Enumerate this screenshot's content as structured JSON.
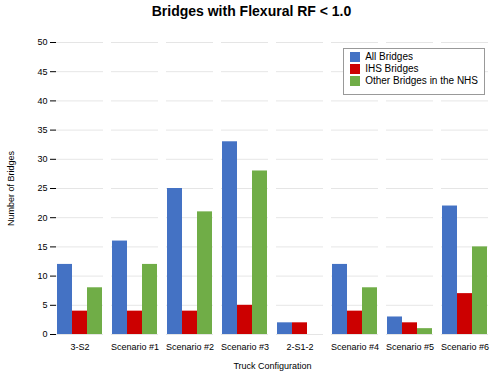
{
  "chart_data": {
    "type": "bar",
    "title": "Bridges with Flexural RF < 1.0",
    "xlabel": "Truck Configuration",
    "ylabel": "Number of Bridges",
    "categories": [
      "3-S2",
      "Scenario #1",
      "Scenario #2",
      "Scenario #3",
      "2-S1-2",
      "Scenario #4",
      "Scenario #5",
      "Scenario #6"
    ],
    "series": [
      {
        "name": "All Bridges",
        "color": "#4472C4",
        "values": [
          12,
          16,
          25,
          33,
          2,
          12,
          3,
          22
        ]
      },
      {
        "name": "IHS Bridges",
        "color": "#CC0000",
        "values": [
          4,
          4,
          4,
          5,
          2,
          4,
          2,
          7
        ]
      },
      {
        "name": "Other Bridges in the NHS",
        "color": "#70AD47",
        "values": [
          8,
          12,
          21,
          28,
          0,
          8,
          1,
          15
        ]
      }
    ],
    "ylim": [
      0,
      50
    ],
    "yticks": [
      0,
      5,
      10,
      15,
      20,
      25,
      30,
      35,
      40,
      45,
      50
    ],
    "grid": true,
    "legend": "upper right"
  }
}
